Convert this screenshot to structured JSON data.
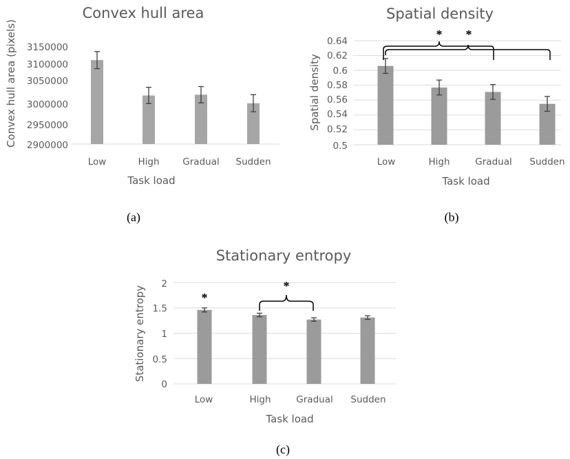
{
  "colors": {
    "bar": "#a6a6a6",
    "bar_dark": "#9b9b9b",
    "grid": "#d9d9d9",
    "text": "#595959",
    "error": "#3f3f3f"
  },
  "chart_data": [
    {
      "type": "bar",
      "title": "Convex hull area",
      "xlabel": "Task load",
      "ylabel": "Convex hull area (pixels)",
      "categories": [
        "Low",
        "High",
        "Gradual",
        "Sudden"
      ],
      "values": [
        3116000,
        3025000,
        3027000,
        3005000
      ],
      "error": [
        22000,
        21000,
        21000,
        22000
      ],
      "ylim": [
        2900000,
        3150000
      ],
      "yticks": [
        "2900000",
        "2950000",
        "3000000",
        "3050000",
        "3100000",
        "3150000"
      ],
      "grid": false,
      "caption": "(a)"
    },
    {
      "type": "bar",
      "title": "Spatial density",
      "xlabel": "Task load",
      "ylabel": "Spatial density",
      "categories": [
        "Low",
        "High",
        "Gradual",
        "Sudden"
      ],
      "values": [
        0.606,
        0.577,
        0.571,
        0.555
      ],
      "error": [
        0.01,
        0.01,
        0.01,
        0.01
      ],
      "ylim": [
        0.5,
        0.64
      ],
      "yticks": [
        "0.5",
        "0.52",
        "0.54",
        "0.56",
        "0.58",
        "0.6",
        "0.62",
        "0.64"
      ],
      "grid": true,
      "significance": [
        "*",
        "*"
      ],
      "caption": "(b)"
    },
    {
      "type": "bar",
      "title": "Stationary entropy",
      "xlabel": "Task load",
      "ylabel": "Stationary entropy",
      "categories": [
        "Low",
        "High",
        "Gradual",
        "Sudden"
      ],
      "values": [
        1.46,
        1.36,
        1.27,
        1.31
      ],
      "error": [
        0.04,
        0.035,
        0.035,
        0.035
      ],
      "ylim": [
        0,
        2
      ],
      "yticks": [
        "0",
        "0.5",
        "1",
        "1.5",
        "2"
      ],
      "grid": true,
      "significance": [
        "*",
        "*"
      ],
      "caption": "(c)"
    }
  ]
}
